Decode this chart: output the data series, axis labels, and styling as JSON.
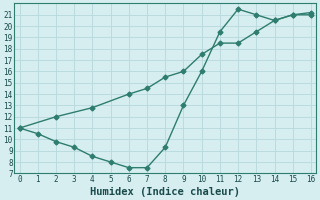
{
  "line1_x": [
    0,
    1,
    2,
    3,
    4,
    5,
    6,
    7,
    8,
    9,
    10,
    11,
    12,
    13,
    14,
    15,
    16
  ],
  "line1_y": [
    11.0,
    10.5,
    9.8,
    9.3,
    8.5,
    8.0,
    7.5,
    7.5,
    9.3,
    13.0,
    16.0,
    19.5,
    21.5,
    21.0,
    20.5,
    21.0,
    21.0
  ],
  "line2_x": [
    0,
    2,
    4,
    6,
    7,
    8,
    9,
    10,
    11,
    12,
    13,
    14,
    15,
    16
  ],
  "line2_y": [
    11.0,
    12.0,
    12.8,
    14.0,
    14.5,
    15.5,
    16.0,
    17.5,
    18.5,
    18.5,
    19.5,
    20.5,
    21.0,
    21.2
  ],
  "line_color": "#2e7d6e",
  "bg_color": "#d6eef0",
  "grid_color": "#b8d8db",
  "xlabel": "Humidex (Indice chaleur)",
  "xlim": [
    -0.3,
    16.3
  ],
  "ylim": [
    7,
    22
  ],
  "yticks": [
    7,
    8,
    9,
    10,
    11,
    12,
    13,
    14,
    15,
    16,
    17,
    18,
    19,
    20,
    21
  ],
  "xticks": [
    0,
    1,
    2,
    3,
    4,
    5,
    6,
    7,
    8,
    9,
    10,
    11,
    12,
    13,
    14,
    15,
    16
  ],
  "marker": "D",
  "markersize": 2.5,
  "linewidth": 1.0,
  "label_fontsize": 7.5,
  "tick_fontsize": 5.5
}
